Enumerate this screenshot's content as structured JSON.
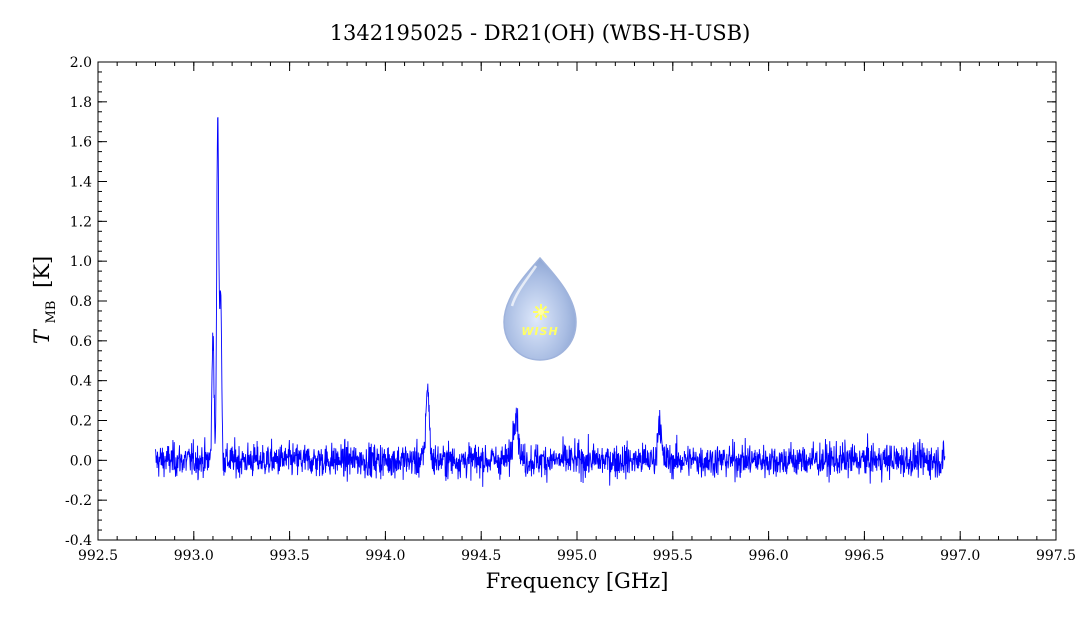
{
  "chart_data": {
    "type": "line",
    "title": "1342195025 - DR21(OH) (WBS-H-USB)",
    "xlabel": "Frequency [GHz]",
    "ylabel": {
      "symbol": "T",
      "subscript": "MB",
      "unit": "[K]"
    },
    "xlim": [
      992.5,
      997.5
    ],
    "ylim": [
      -0.4,
      2.0
    ],
    "x_ticks": [
      "992.5",
      "993.0",
      "993.5",
      "994.0",
      "994.5",
      "995.0",
      "995.5",
      "996.0",
      "996.5",
      "997.0",
      "997.5"
    ],
    "y_ticks": [
      "-0.4",
      "-0.2",
      "0.0",
      "0.2",
      "0.4",
      "0.6",
      "0.8",
      "1.0",
      "1.2",
      "1.4",
      "1.6",
      "1.8",
      "2.0"
    ],
    "grid": false,
    "series": [
      {
        "color": "#0000ff",
        "x_range": [
          992.8,
          996.92
        ],
        "baseline": 0.0,
        "noise_rms": 0.07,
        "lines": [
          {
            "center": 993.1,
            "peak": 0.66,
            "fwhm": 0.012
          },
          {
            "center": 993.125,
            "peak": 1.75,
            "fwhm": 0.012
          },
          {
            "center": 993.14,
            "peak": 0.85,
            "fwhm": 0.012
          },
          {
            "center": 994.22,
            "peak": 0.38,
            "fwhm": 0.02
          },
          {
            "center": 994.68,
            "peak": 0.25,
            "fwhm": 0.03
          },
          {
            "center": 995.43,
            "peak": 0.22,
            "fwhm": 0.02
          }
        ]
      }
    ]
  },
  "logo": {
    "text": "WISH",
    "colors": {
      "drop": "#a9bde3",
      "star": "#ffff66",
      "text": "#ffff66"
    }
  }
}
